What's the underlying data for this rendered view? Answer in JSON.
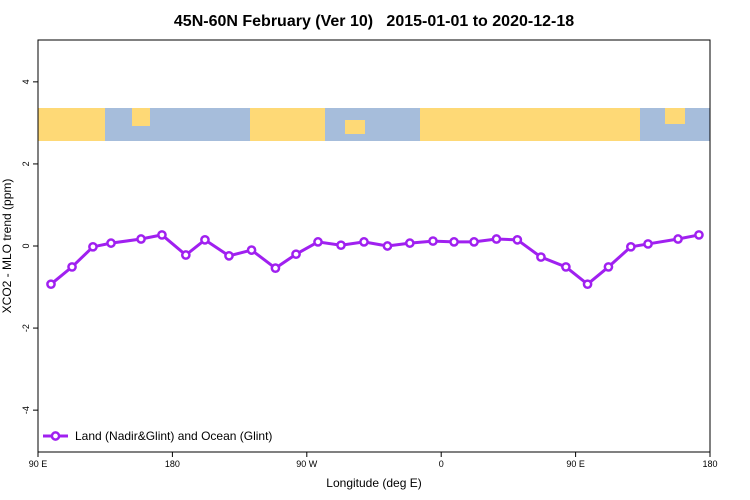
{
  "chart_data": {
    "type": "line",
    "title": "45N-60N February (Ver 10)   2015-01-01 to 2020-12-18",
    "x_label": "Longitude (deg E)",
    "y_label": "XCO2 - MLO trend (ppm)",
    "x": [
      98.7,
      112.8,
      126.8,
      138.9,
      159,
      173,
      189,
      201.8,
      217.9,
      233,
      249,
      262.8,
      277.5,
      292.9,
      308.3,
      324,
      339,
      354.5,
      368.6,
      382,
      397,
      411,
      426.8,
      443.5,
      458,
      472,
      487,
      498.5,
      518.6,
      532.6
    ],
    "series": [
      {
        "name": "Land (Nadir&Glint) and Ocean (Glint)",
        "color": "#a020f0",
        "values": [
          -0.93,
          -0.51,
          -0.02,
          0.07,
          0.17,
          0.27,
          -0.22,
          0.15,
          -0.24,
          -0.1,
          -0.54,
          -0.2,
          0.1,
          0.02,
          0.1,
          0,
          0.07,
          0.12,
          0.1,
          0.1,
          0.17,
          0.15,
          -0.27,
          -0.51,
          -0.93,
          -0.51,
          -0.02,
          0.05,
          0.17,
          0.27
        ]
      }
    ],
    "xlim": [
      90,
      540
    ],
    "xticks": [
      {
        "value": 90,
        "label": "90 E"
      },
      {
        "value": 180,
        "label": "180"
      },
      {
        "value": 270,
        "label": "90 W"
      },
      {
        "value": 360,
        "label": "0"
      },
      {
        "value": 450,
        "label": "90 E"
      },
      {
        "value": 540,
        "label": "180"
      }
    ],
    "ylim": [
      -5.02,
      5.02
    ],
    "yticks": [
      -4,
      -2,
      0,
      2,
      4
    ],
    "legend": "bottom left"
  }
}
